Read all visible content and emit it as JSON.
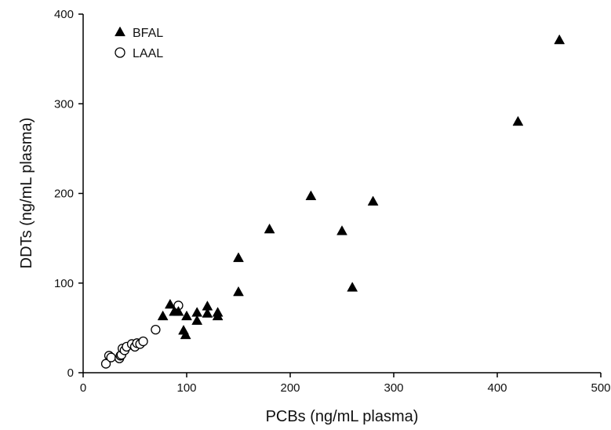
{
  "chart_data": {
    "type": "scatter",
    "title": "",
    "xlabel": "PCBs (ng/mL plasma)",
    "ylabel": "DDTs (ng/mL plasma)",
    "xlim": [
      0,
      500
    ],
    "ylim": [
      0,
      400
    ],
    "xticks": [
      0,
      100,
      200,
      300,
      400,
      500
    ],
    "yticks": [
      0,
      100,
      200,
      300,
      400
    ],
    "grid": false,
    "legend_position": "top-left",
    "series": [
      {
        "name": "BFAL",
        "marker": "filled-triangle",
        "color": "#000000",
        "points": [
          {
            "x": 77,
            "y": 63
          },
          {
            "x": 84,
            "y": 76
          },
          {
            "x": 88,
            "y": 68
          },
          {
            "x": 92,
            "y": 68
          },
          {
            "x": 97,
            "y": 47
          },
          {
            "x": 99,
            "y": 42
          },
          {
            "x": 100,
            "y": 63
          },
          {
            "x": 110,
            "y": 58
          },
          {
            "x": 110,
            "y": 67
          },
          {
            "x": 120,
            "y": 74
          },
          {
            "x": 120,
            "y": 66
          },
          {
            "x": 130,
            "y": 63
          },
          {
            "x": 130,
            "y": 67
          },
          {
            "x": 150,
            "y": 128
          },
          {
            "x": 150,
            "y": 90
          },
          {
            "x": 180,
            "y": 160
          },
          {
            "x": 220,
            "y": 197
          },
          {
            "x": 250,
            "y": 158
          },
          {
            "x": 260,
            "y": 95
          },
          {
            "x": 280,
            "y": 191
          },
          {
            "x": 420,
            "y": 280
          },
          {
            "x": 460,
            "y": 371
          }
        ]
      },
      {
        "name": "LAAL",
        "marker": "open-circle",
        "color": "#000000",
        "points": [
          {
            "x": 22,
            "y": 10
          },
          {
            "x": 25,
            "y": 19
          },
          {
            "x": 27,
            "y": 17
          },
          {
            "x": 35,
            "y": 16
          },
          {
            "x": 36,
            "y": 19
          },
          {
            "x": 37,
            "y": 20
          },
          {
            "x": 38,
            "y": 27
          },
          {
            "x": 40,
            "y": 25
          },
          {
            "x": 42,
            "y": 29
          },
          {
            "x": 47,
            "y": 32
          },
          {
            "x": 50,
            "y": 29
          },
          {
            "x": 52,
            "y": 33
          },
          {
            "x": 55,
            "y": 32
          },
          {
            "x": 58,
            "y": 35
          },
          {
            "x": 70,
            "y": 48
          },
          {
            "x": 92,
            "y": 75
          }
        ]
      }
    ]
  }
}
